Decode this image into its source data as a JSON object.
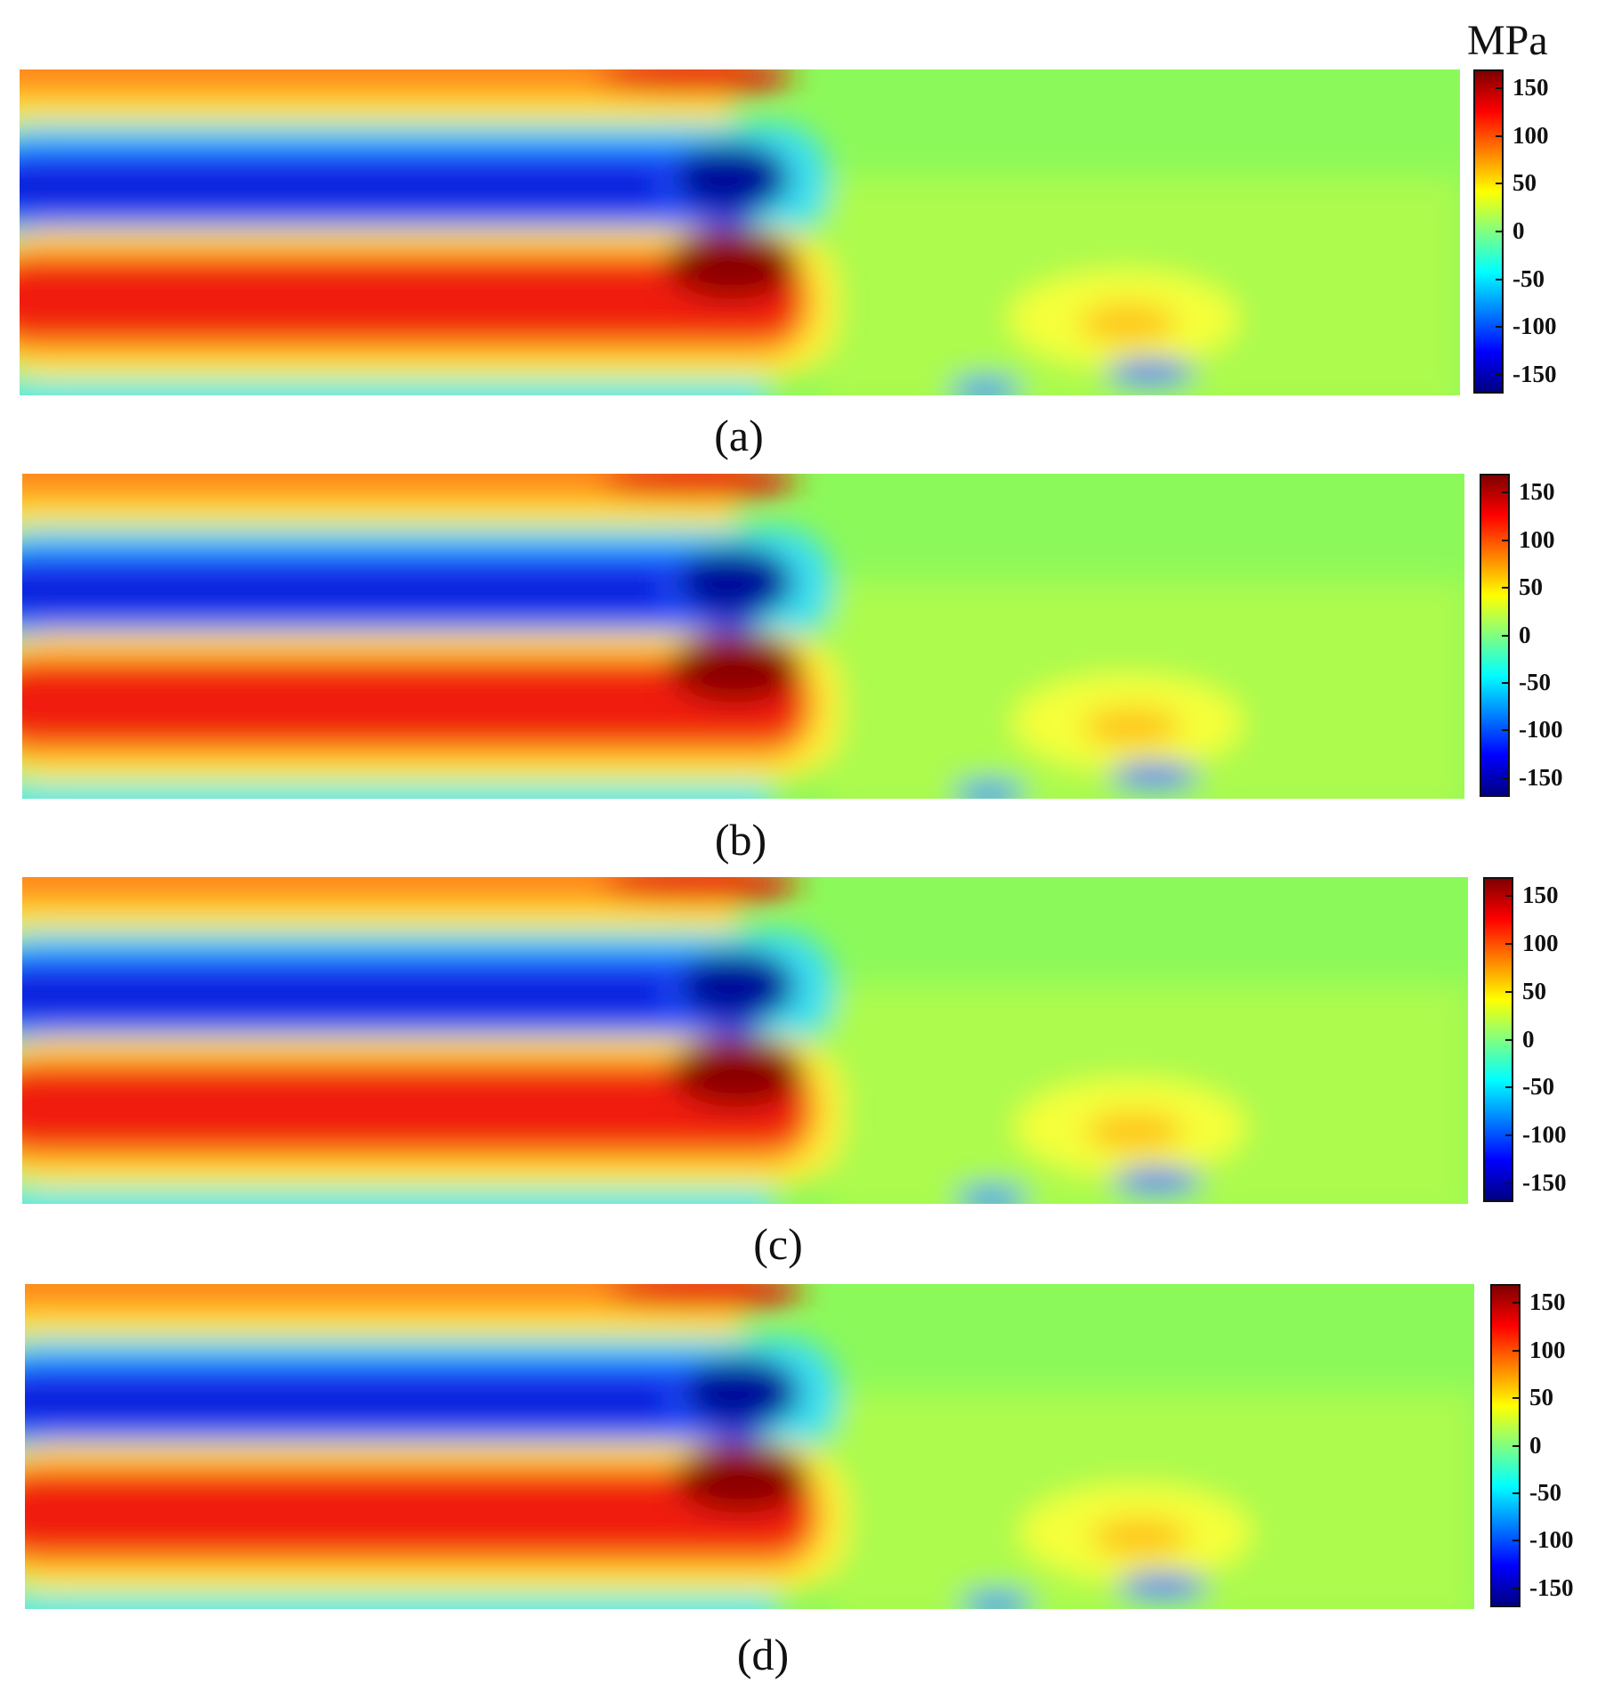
{
  "chart_data": {
    "type": "heatmap",
    "colorbar": {
      "unit": "MPa",
      "range": [
        -170,
        170
      ],
      "colormap": "jet",
      "ticks": [
        "150",
        "100",
        "50",
        "0",
        "-50",
        "-100",
        "-150"
      ],
      "tick_values": [
        150,
        100,
        50,
        0,
        -50,
        -100,
        -150
      ]
    },
    "panels": [
      {
        "label": "(a)",
        "show_unit": true
      },
      {
        "label": "(b)",
        "show_unit": false
      },
      {
        "label": "(c)",
        "show_unit": false
      },
      {
        "label": "(d)",
        "show_unit": false
      }
    ]
  }
}
